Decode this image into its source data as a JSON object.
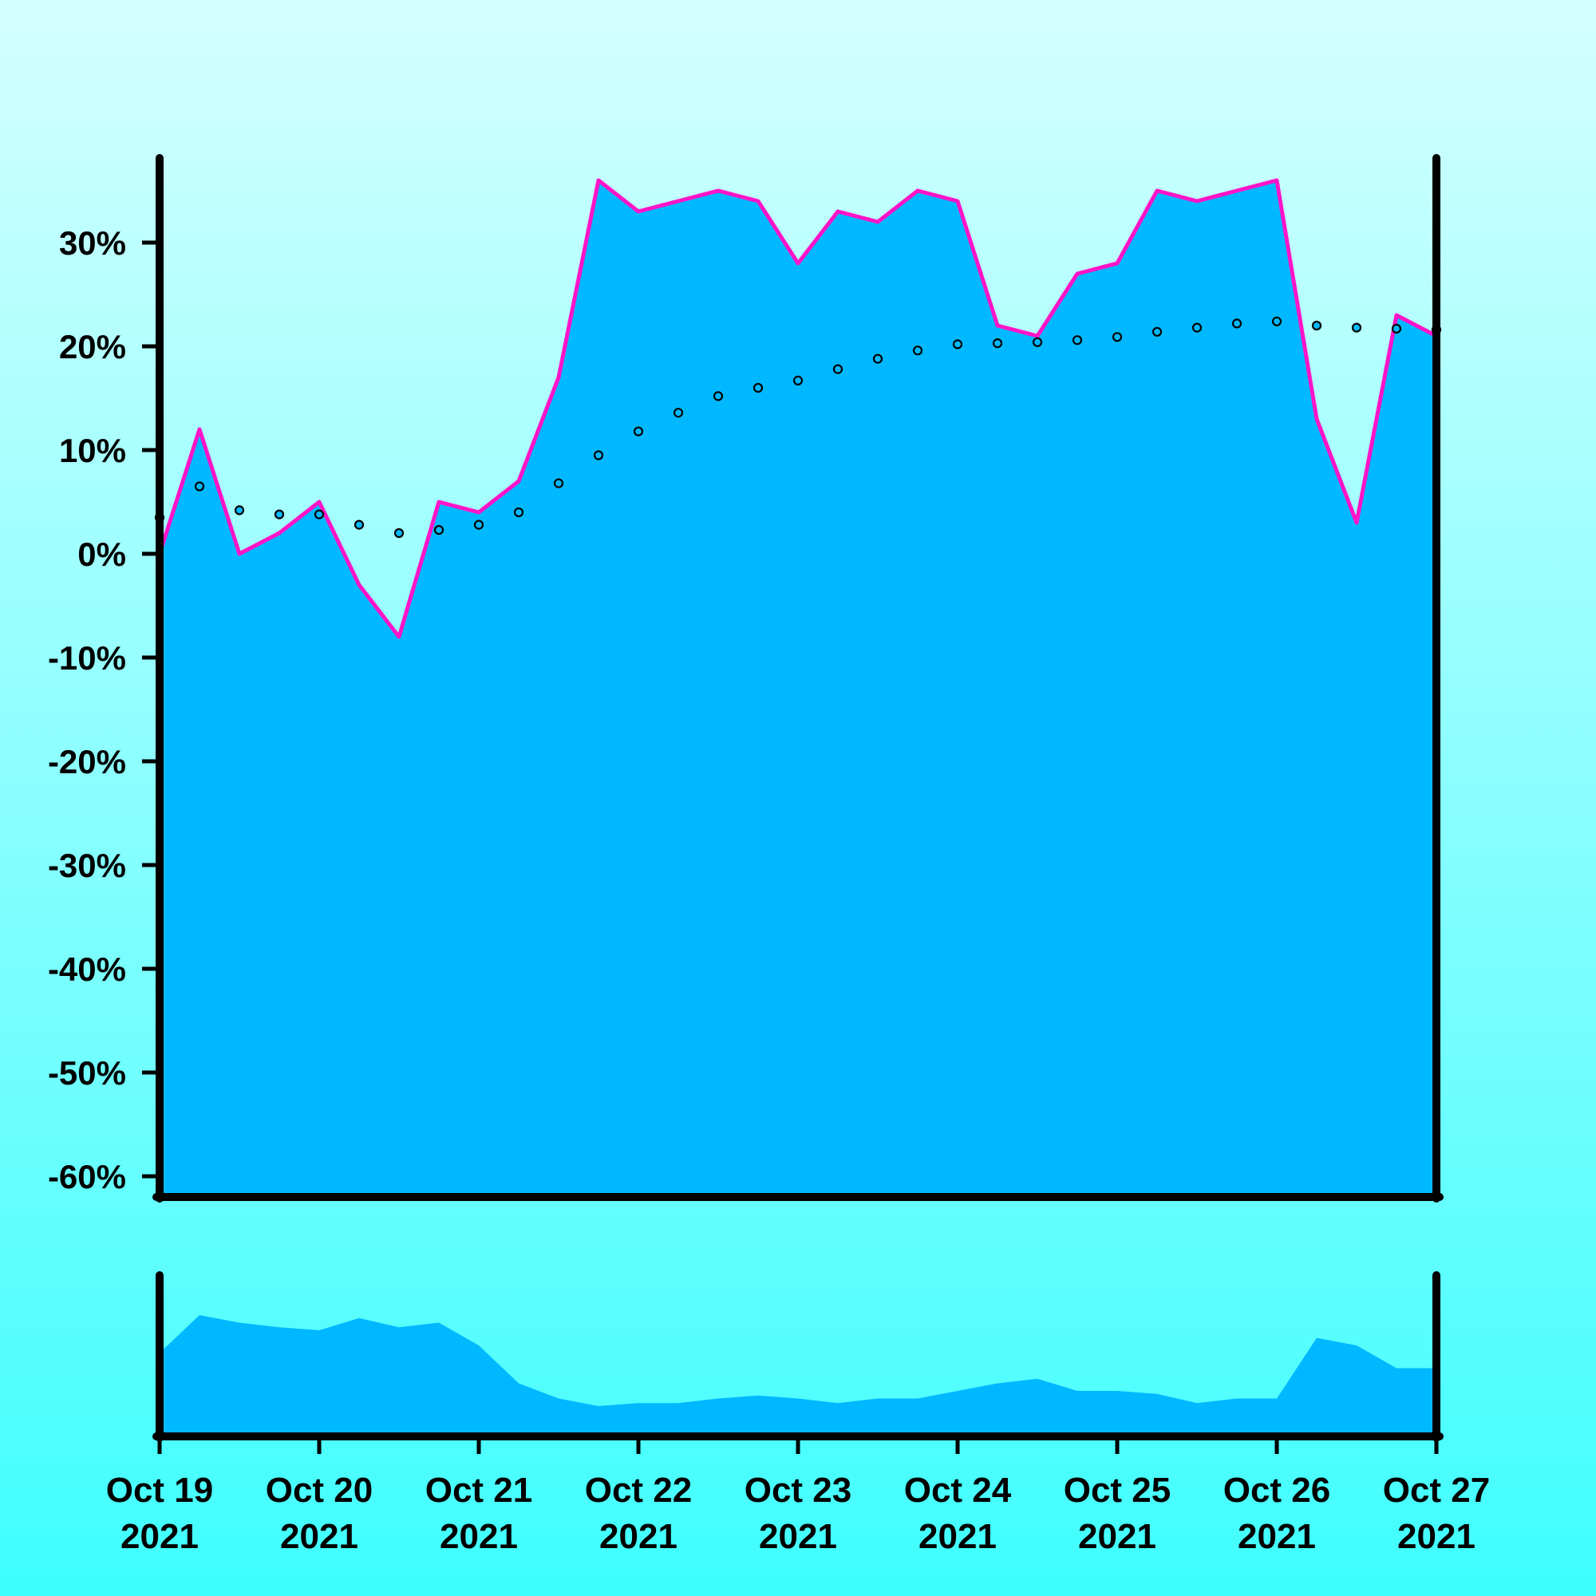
{
  "chart_data": {
    "type": "area",
    "subtype": "price-with-volume",
    "title": "",
    "xlabel": "",
    "ylabel": "",
    "x_unit": "date",
    "ylim": [
      -62,
      38
    ],
    "y_ticks": [
      30,
      20,
      10,
      0,
      -10,
      -20,
      -30,
      -40,
      -50,
      -60
    ],
    "y_tick_labels": [
      "30%",
      "20%",
      "10%",
      "0%",
      "-10%",
      "-20%",
      "-30%",
      "-40%",
      "-50%",
      "-60%"
    ],
    "x_range": [
      "2021-10-19",
      "2021-10-27"
    ],
    "x_ticks": [
      "2021-10-19",
      "2021-10-20",
      "2021-10-21",
      "2021-10-22",
      "2021-10-23",
      "2021-10-24",
      "2021-10-25",
      "2021-10-26",
      "2021-10-27"
    ],
    "x_tick_labels": [
      {
        "line1": "Oct 19",
        "line2": "2021"
      },
      {
        "line1": "Oct 20",
        "line2": "2021"
      },
      {
        "line1": "Oct 21",
        "line2": "2021"
      },
      {
        "line1": "Oct 22",
        "line2": "2021"
      },
      {
        "line1": "Oct 23",
        "line2": "2021"
      },
      {
        "line1": "Oct 24",
        "line2": "2021"
      },
      {
        "line1": "Oct 25",
        "line2": "2021"
      },
      {
        "line1": "Oct 26",
        "line2": "2021"
      },
      {
        "line1": "Oct 27",
        "line2": "2021"
      }
    ],
    "grid": false,
    "legend": "none",
    "colors": {
      "area_fill": "#00b8ff",
      "area_edge": "#ff14c8",
      "moving_average": "#000000",
      "volume": "#00b8ff",
      "axes": "#000000"
    },
    "series": [
      {
        "role": "price",
        "x": [
          "2021-10-19T00:00",
          "2021-10-19T06:00",
          "2021-10-19T12:00",
          "2021-10-19T18:00",
          "2021-10-20T00:00",
          "2021-10-20T06:00",
          "2021-10-20T12:00",
          "2021-10-20T18:00",
          "2021-10-21T00:00",
          "2021-10-21T06:00",
          "2021-10-21T12:00",
          "2021-10-21T18:00",
          "2021-10-22T00:00",
          "2021-10-22T06:00",
          "2021-10-22T12:00",
          "2021-10-22T18:00",
          "2021-10-23T00:00",
          "2021-10-23T06:00",
          "2021-10-23T12:00",
          "2021-10-23T18:00",
          "2021-10-24T00:00",
          "2021-10-24T06:00",
          "2021-10-24T12:00",
          "2021-10-24T18:00",
          "2021-10-25T00:00",
          "2021-10-25T06:00",
          "2021-10-25T12:00",
          "2021-10-25T18:00",
          "2021-10-26T00:00",
          "2021-10-26T06:00",
          "2021-10-26T12:00",
          "2021-10-26T18:00",
          "2021-10-27T00:00"
        ],
        "values": [
          0,
          12,
          0,
          2,
          5,
          -3,
          -8,
          5,
          4,
          7,
          17,
          36,
          33,
          34,
          35,
          34,
          28,
          33,
          32,
          35,
          34,
          22,
          21,
          27,
          28,
          35,
          34,
          35,
          36,
          13,
          3,
          23,
          21
        ]
      },
      {
        "role": "moving-average",
        "x": [
          "2021-10-19T00:00",
          "2021-10-19T06:00",
          "2021-10-19T12:00",
          "2021-10-19T18:00",
          "2021-10-20T00:00",
          "2021-10-20T06:00",
          "2021-10-20T12:00",
          "2021-10-20T18:00",
          "2021-10-21T00:00",
          "2021-10-21T06:00",
          "2021-10-21T12:00",
          "2021-10-21T18:00",
          "2021-10-22T00:00",
          "2021-10-22T06:00",
          "2021-10-22T12:00",
          "2021-10-22T18:00",
          "2021-10-23T00:00",
          "2021-10-23T06:00",
          "2021-10-23T12:00",
          "2021-10-23T18:00",
          "2021-10-24T00:00",
          "2021-10-24T06:00",
          "2021-10-24T12:00",
          "2021-10-24T18:00",
          "2021-10-25T00:00",
          "2021-10-25T06:00",
          "2021-10-25T12:00",
          "2021-10-25T18:00",
          "2021-10-26T00:00",
          "2021-10-26T06:00",
          "2021-10-26T12:00",
          "2021-10-26T18:00",
          "2021-10-27T00:00"
        ],
        "values": [
          3.5,
          6.5,
          4.2,
          3.8,
          3.8,
          2.8,
          2.0,
          2.3,
          2.8,
          4.0,
          6.8,
          9.5,
          11.8,
          13.6,
          15.2,
          16.0,
          16.7,
          17.8,
          18.8,
          19.6,
          20.2,
          20.3,
          20.4,
          20.6,
          20.9,
          21.4,
          21.8,
          22.2,
          22.4,
          22.0,
          21.8,
          21.7,
          21.6
        ]
      },
      {
        "role": "volume",
        "x": [
          "2021-10-19T00:00",
          "2021-10-19T06:00",
          "2021-10-19T12:00",
          "2021-10-19T18:00",
          "2021-10-20T00:00",
          "2021-10-20T06:00",
          "2021-10-20T12:00",
          "2021-10-20T18:00",
          "2021-10-21T00:00",
          "2021-10-21T06:00",
          "2021-10-21T12:00",
          "2021-10-21T18:00",
          "2021-10-22T00:00",
          "2021-10-22T06:00",
          "2021-10-22T12:00",
          "2021-10-22T18:00",
          "2021-10-23T00:00",
          "2021-10-23T06:00",
          "2021-10-23T12:00",
          "2021-10-23T18:00",
          "2021-10-24T00:00",
          "2021-10-24T06:00",
          "2021-10-24T12:00",
          "2021-10-24T18:00",
          "2021-10-25T00:00",
          "2021-10-25T06:00",
          "2021-10-25T12:00",
          "2021-10-25T18:00",
          "2021-10-26T00:00",
          "2021-10-26T06:00",
          "2021-10-26T12:00",
          "2021-10-26T18:00",
          "2021-10-27T00:00"
        ],
        "values": [
          0.55,
          0.8,
          0.75,
          0.72,
          0.7,
          0.78,
          0.72,
          0.75,
          0.6,
          0.35,
          0.25,
          0.2,
          0.22,
          0.22,
          0.25,
          0.27,
          0.25,
          0.22,
          0.25,
          0.25,
          0.3,
          0.35,
          0.38,
          0.3,
          0.3,
          0.28,
          0.22,
          0.25,
          0.25,
          0.65,
          0.6,
          0.45,
          0.45
        ]
      }
    ]
  }
}
